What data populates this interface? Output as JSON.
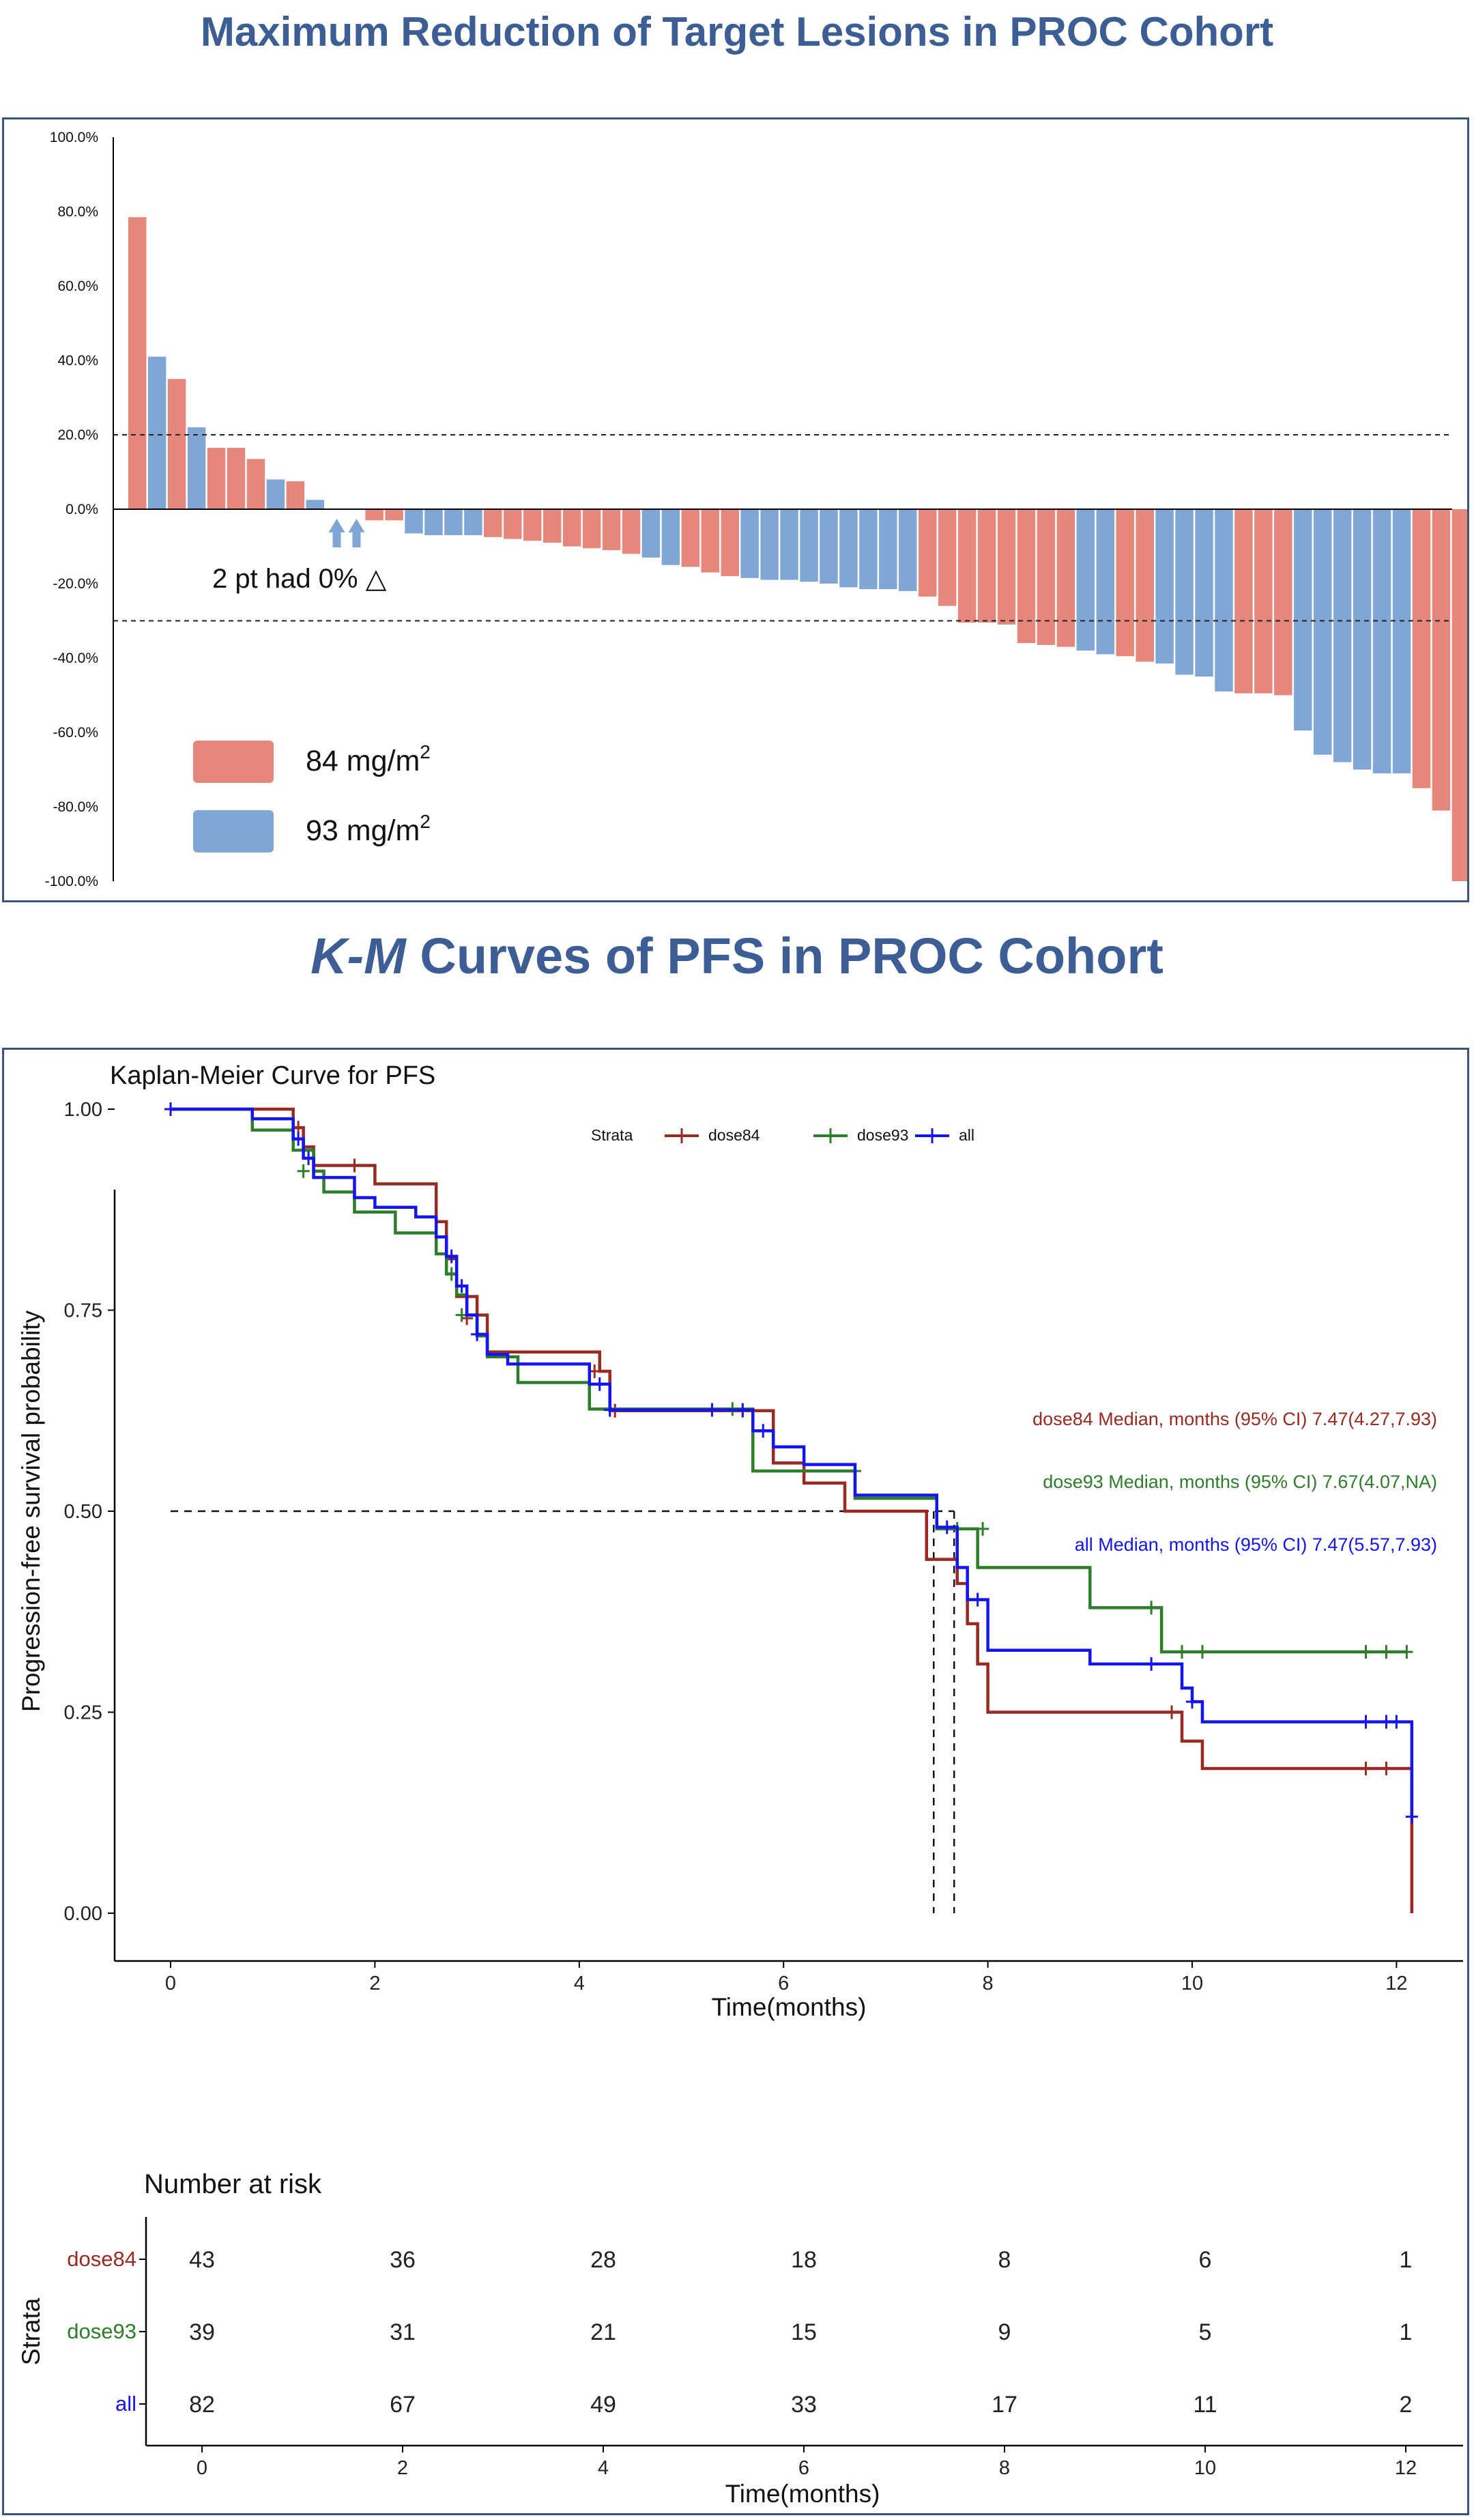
{
  "page": {
    "title_waterfall": "Maximum Reduction of Target Lesions in PROC Cohort",
    "title_km_italic": "K-M",
    "title_km_rest": " Curves of  PFS in PROC Cohort"
  },
  "colors": {
    "dose84": "#e5877a",
    "dose93": "#7fa6d4",
    "km84": "#992a22",
    "km93": "#2e7d2b",
    "kmall": "#1515ee",
    "title": "#3d5e95"
  },
  "chart_data": [
    {
      "type": "bar",
      "name": "waterfall",
      "ylim": [
        -100,
        100
      ],
      "y_ticks": [
        "100.0%",
        "80.0%",
        "60.0%",
        "40.0%",
        "20.0%",
        "0.0%",
        "-20.0%",
        "-40.0%",
        "-60.0%",
        "-80.0%",
        "-100.0%"
      ],
      "reference_lines": [
        20,
        -30
      ],
      "annotation": "2 pt had 0% △",
      "legend": [
        {
          "label": "84 mg/m",
          "sup": "2",
          "color": "#e5877a"
        },
        {
          "label": "93 mg/m",
          "sup": "2",
          "color": "#7fa6d4"
        }
      ],
      "bars": [
        {
          "v": 78.5,
          "g": "84"
        },
        {
          "v": 41,
          "g": "93"
        },
        {
          "v": 35,
          "g": "84"
        },
        {
          "v": 22,
          "g": "93"
        },
        {
          "v": 16.5,
          "g": "84"
        },
        {
          "v": 16.5,
          "g": "84"
        },
        {
          "v": 13.5,
          "g": "84"
        },
        {
          "v": 8,
          "g": "93"
        },
        {
          "v": 7.5,
          "g": "84"
        },
        {
          "v": 2.5,
          "g": "93"
        },
        {
          "v": 0,
          "g": "93"
        },
        {
          "v": 0,
          "g": "93"
        },
        {
          "v": -3,
          "g": "84"
        },
        {
          "v": -3,
          "g": "84"
        },
        {
          "v": -6.5,
          "g": "93"
        },
        {
          "v": -7,
          "g": "93"
        },
        {
          "v": -7,
          "g": "93"
        },
        {
          "v": -7,
          "g": "93"
        },
        {
          "v": -7.5,
          "g": "84"
        },
        {
          "v": -8,
          "g": "84"
        },
        {
          "v": -8.5,
          "g": "84"
        },
        {
          "v": -9,
          "g": "84"
        },
        {
          "v": -10,
          "g": "84"
        },
        {
          "v": -10.5,
          "g": "84"
        },
        {
          "v": -11,
          "g": "84"
        },
        {
          "v": -12,
          "g": "84"
        },
        {
          "v": -13,
          "g": "93"
        },
        {
          "v": -15,
          "g": "93"
        },
        {
          "v": -15.5,
          "g": "84"
        },
        {
          "v": -17,
          "g": "84"
        },
        {
          "v": -18,
          "g": "84"
        },
        {
          "v": -18.5,
          "g": "93"
        },
        {
          "v": -19,
          "g": "93"
        },
        {
          "v": -19,
          "g": "93"
        },
        {
          "v": -19.5,
          "g": "93"
        },
        {
          "v": -20,
          "g": "93"
        },
        {
          "v": -21,
          "g": "93"
        },
        {
          "v": -21.5,
          "g": "93"
        },
        {
          "v": -21.5,
          "g": "93"
        },
        {
          "v": -22,
          "g": "93"
        },
        {
          "v": -23.5,
          "g": "84"
        },
        {
          "v": -26,
          "g": "84"
        },
        {
          "v": -30.5,
          "g": "84"
        },
        {
          "v": -30.5,
          "g": "84"
        },
        {
          "v": -31,
          "g": "84"
        },
        {
          "v": -36,
          "g": "84"
        },
        {
          "v": -36.5,
          "g": "84"
        },
        {
          "v": -37,
          "g": "84"
        },
        {
          "v": -38,
          "g": "93"
        },
        {
          "v": -39,
          "g": "93"
        },
        {
          "v": -39.5,
          "g": "84"
        },
        {
          "v": -41,
          "g": "84"
        },
        {
          "v": -41.5,
          "g": "93"
        },
        {
          "v": -44.5,
          "g": "93"
        },
        {
          "v": -45,
          "g": "93"
        },
        {
          "v": -49,
          "g": "93"
        },
        {
          "v": -49.5,
          "g": "84"
        },
        {
          "v": -49.5,
          "g": "84"
        },
        {
          "v": -50,
          "g": "84"
        },
        {
          "v": -59.5,
          "g": "93"
        },
        {
          "v": -66,
          "g": "93"
        },
        {
          "v": -68,
          "g": "93"
        },
        {
          "v": -70,
          "g": "93"
        },
        {
          "v": -71,
          "g": "93"
        },
        {
          "v": -71,
          "g": "93"
        },
        {
          "v": -75,
          "g": "84"
        },
        {
          "v": -81,
          "g": "84"
        },
        {
          "v": -100,
          "g": "84"
        }
      ]
    },
    {
      "type": "line",
      "name": "kaplan-meier",
      "title": "Kaplan-Meier Curve for PFS",
      "xlabel": "Time(months)",
      "ylabel": "Progression-free survival probability",
      "xlim": [
        -0.5,
        12.6
      ],
      "ylim": [
        -0.05,
        1.05
      ],
      "x_ticks": [
        "0",
        "2",
        "4",
        "6",
        "8",
        "10",
        "12"
      ],
      "y_ticks": [
        "0.00",
        "0.25",
        "0.50",
        "0.75",
        "1.00"
      ],
      "legend_title": "Strata",
      "medians": [
        {
          "text": "dose84 Median, months (95% CI) 7.47(4.27,7.93)",
          "color": "#992a22"
        },
        {
          "text": "dose93 Median, months (95% CI) 7.67(4.07,NA)",
          "color": "#2e7d2b"
        },
        {
          "text": "all Median, months (95% CI) 7.47(5.57,7.93)",
          "color": "#1515ee"
        }
      ],
      "median_line": {
        "y": 0.5,
        "x": [
          7.47,
          7.67
        ]
      },
      "series": [
        {
          "name": "dose84",
          "color": "#992a22",
          "steps": [
            [
              0,
              1.0
            ],
            [
              1.2,
              0.977
            ],
            [
              1.3,
              0.953
            ],
            [
              1.4,
              0.93
            ],
            [
              2.0,
              0.907
            ],
            [
              2.6,
              0.86
            ],
            [
              2.7,
              0.814
            ],
            [
              2.8,
              0.767
            ],
            [
              3.0,
              0.744
            ],
            [
              3.1,
              0.698
            ],
            [
              4.2,
              0.674
            ],
            [
              4.3,
              0.625
            ],
            [
              5.9,
              0.56
            ],
            [
              6.2,
              0.535
            ],
            [
              6.6,
              0.5
            ],
            [
              7.4,
              0.44
            ],
            [
              7.7,
              0.41
            ],
            [
              7.8,
              0.36
            ],
            [
              7.9,
              0.31
            ],
            [
              8.0,
              0.25
            ],
            [
              9.9,
              0.214
            ],
            [
              10.1,
              0.18
            ],
            [
              12.15,
              0.0
            ]
          ],
          "end": 12.15,
          "censor": [
            [
              1.25,
              0.977
            ],
            [
              1.8,
              0.93
            ],
            [
              2.9,
              0.74
            ],
            [
              4.15,
              0.674
            ],
            [
              4.35,
              0.625
            ],
            [
              5.6,
              0.625
            ],
            [
              9.8,
              0.25
            ],
            [
              11.7,
              0.18
            ],
            [
              11.9,
              0.18
            ]
          ]
        },
        {
          "name": "dose93",
          "color": "#2e7d2b",
          "steps": [
            [
              0,
              1.0
            ],
            [
              0.8,
              0.974
            ],
            [
              1.2,
              0.949
            ],
            [
              1.4,
              0.923
            ],
            [
              1.5,
              0.897
            ],
            [
              1.8,
              0.872
            ],
            [
              2.2,
              0.846
            ],
            [
              2.6,
              0.82
            ],
            [
              2.7,
              0.795
            ],
            [
              2.8,
              0.769
            ],
            [
              2.9,
              0.744
            ],
            [
              3.0,
              0.718
            ],
            [
              3.1,
              0.692
            ],
            [
              3.4,
              0.66
            ],
            [
              4.1,
              0.627
            ],
            [
              5.7,
              0.55
            ],
            [
              6.7,
              0.516
            ],
            [
              7.5,
              0.478
            ],
            [
              7.9,
              0.43
            ],
            [
              9.0,
              0.38
            ],
            [
              9.7,
              0.325
            ]
          ],
          "end": 12.1,
          "censor": [
            [
              1.3,
              0.923
            ],
            [
              2.75,
              0.795
            ],
            [
              2.85,
              0.744
            ],
            [
              4.3,
              0.627
            ],
            [
              5.5,
              0.627
            ],
            [
              6.7,
              0.55
            ],
            [
              7.7,
              0.478
            ],
            [
              7.95,
              0.478
            ],
            [
              9.6,
              0.38
            ],
            [
              9.9,
              0.325
            ],
            [
              10.1,
              0.325
            ],
            [
              11.7,
              0.325
            ],
            [
              11.9,
              0.325
            ],
            [
              12.1,
              0.325
            ]
          ]
        },
        {
          "name": "all",
          "color": "#1515ee",
          "steps": [
            [
              0,
              1.0
            ],
            [
              0.8,
              0.988
            ],
            [
              1.2,
              0.963
            ],
            [
              1.3,
              0.939
            ],
            [
              1.4,
              0.915
            ],
            [
              1.8,
              0.89
            ],
            [
              2.0,
              0.878
            ],
            [
              2.4,
              0.866
            ],
            [
              2.6,
              0.841
            ],
            [
              2.7,
              0.817
            ],
            [
              2.8,
              0.78
            ],
            [
              2.9,
              0.744
            ],
            [
              3.0,
              0.72
            ],
            [
              3.1,
              0.695
            ],
            [
              3.3,
              0.683
            ],
            [
              4.1,
              0.658
            ],
            [
              4.3,
              0.626
            ],
            [
              5.7,
              0.6
            ],
            [
              5.9,
              0.58
            ],
            [
              6.2,
              0.558
            ],
            [
              6.7,
              0.52
            ],
            [
              7.5,
              0.48
            ],
            [
              7.7,
              0.43
            ],
            [
              7.8,
              0.39
            ],
            [
              8.0,
              0.327
            ],
            [
              9.0,
              0.31
            ],
            [
              9.9,
              0.28
            ],
            [
              10.0,
              0.263
            ],
            [
              10.1,
              0.238
            ],
            [
              12.15,
              0.12
            ]
          ],
          "end": 12.15,
          "censor": [
            [
              0,
              1.0
            ],
            [
              1.25,
              0.963
            ],
            [
              1.35,
              0.939
            ],
            [
              2.75,
              0.817
            ],
            [
              2.85,
              0.78
            ],
            [
              3.0,
              0.72
            ],
            [
              4.2,
              0.658
            ],
            [
              4.3,
              0.626
            ],
            [
              5.3,
              0.626
            ],
            [
              5.6,
              0.626
            ],
            [
              5.8,
              0.6
            ],
            [
              7.6,
              0.48
            ],
            [
              7.9,
              0.39
            ],
            [
              9.6,
              0.31
            ],
            [
              10.0,
              0.263
            ],
            [
              11.7,
              0.238
            ],
            [
              11.9,
              0.238
            ],
            [
              12.0,
              0.238
            ],
            [
              12.15,
              0.12
            ]
          ]
        }
      ]
    },
    {
      "type": "table",
      "name": "number-at-risk",
      "title": "Number at risk",
      "ylabel": "Strata",
      "xlabel": "Time(months)",
      "x_ticks": [
        "0",
        "2",
        "4",
        "6",
        "8",
        "10",
        "12"
      ],
      "rows": [
        {
          "label": "dose84",
          "color": "#992a22",
          "values": [
            "43",
            "36",
            "28",
            "18",
            "8",
            "6",
            "1"
          ]
        },
        {
          "label": "dose93",
          "color": "#2e7d2b",
          "values": [
            "39",
            "31",
            "21",
            "15",
            "9",
            "5",
            "1"
          ]
        },
        {
          "label": "all",
          "color": "#1515ee",
          "values": [
            "82",
            "67",
            "49",
            "33",
            "17",
            "11",
            "2"
          ]
        }
      ]
    }
  ]
}
